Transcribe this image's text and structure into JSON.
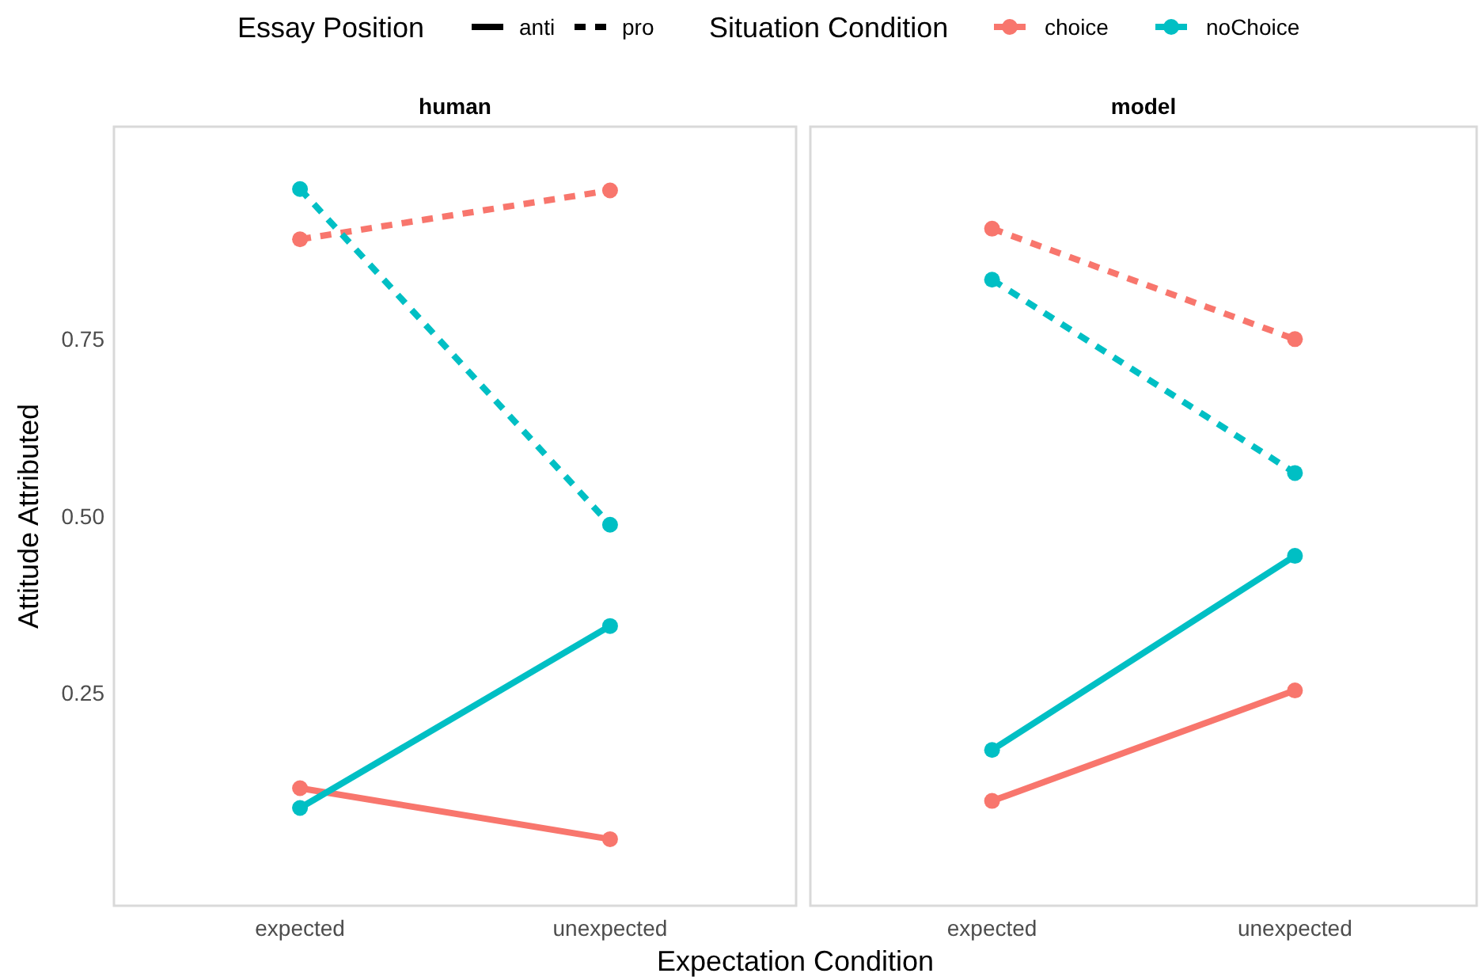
{
  "chart_data": [
    {
      "type": "line",
      "title": "human",
      "xlabel": "Expectation Condition",
      "ylabel": "Attitude Attributed",
      "legend_title": "Situation Condition",
      "annotations": [
        "Essay Position",
        "anti",
        "pro"
      ],
      "legend": "top",
      "marker": "circle",
      "categories": [
        "expected",
        "unexpected"
      ],
      "ylim": [
        -0.05,
        1.05
      ],
      "yticks": [
        {
          "value": 0.25,
          "label": "0.25"
        },
        {
          "value": 0.5,
          "label": "0.50"
        },
        {
          "value": 0.75,
          "label": "0.75"
        }
      ],
      "series": [
        {
          "name": "choice",
          "color": "#f8766d",
          "line_style": "solid",
          "values": [
            0.116,
            0.044
          ]
        },
        {
          "color": "#f8766d",
          "line_style": "dashed",
          "values": [
            0.891,
            0.96
          ]
        },
        {
          "name": "noChoice",
          "color": "#00bfc4",
          "line_style": "solid",
          "values": [
            0.088,
            0.345
          ]
        },
        {
          "color": "#00bfc4",
          "line_style": "dashed",
          "values": [
            0.962,
            0.488
          ]
        }
      ]
    },
    {
      "type": "line",
      "title": "model",
      "marker": "circle",
      "tick_labels": "x",
      "categories": [
        "expected",
        "unexpected"
      ],
      "ylim": [
        -0.05,
        1.05
      ],
      "series": [
        {
          "color": "#f8766d",
          "line_style": "solid",
          "values": [
            0.098,
            0.254
          ]
        },
        {
          "color": "#f8766d",
          "line_style": "dashed",
          "values": [
            0.906,
            0.75
          ]
        },
        {
          "color": "#00bfc4",
          "line_style": "solid",
          "values": [
            0.17,
            0.444
          ]
        },
        {
          "color": "#00bfc4",
          "line_style": "dashed",
          "values": [
            0.834,
            0.561
          ]
        }
      ]
    }
  ]
}
